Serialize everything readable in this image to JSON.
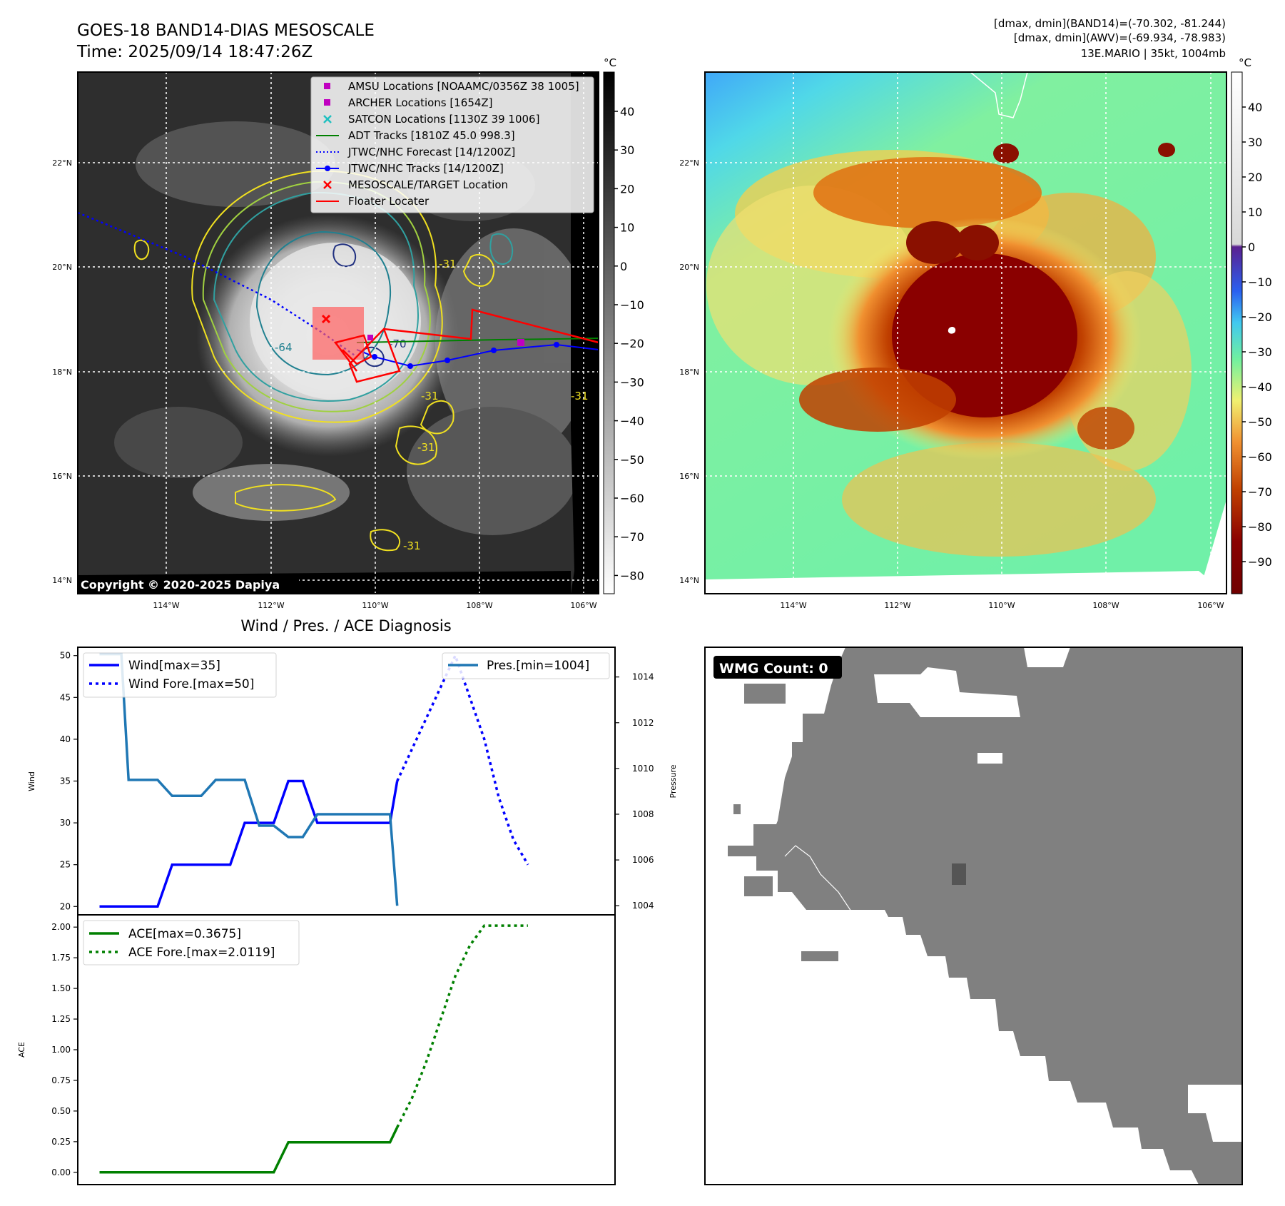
{
  "header": {
    "title_line1": "GOES-18 BAND14-DIAS MESOSCALE",
    "title_line2": "Time: 2025/09/14 18:47:26Z",
    "info_line1": "[dmax, dmin](BAND14)=(-70.302, -81.244)",
    "info_line2": "[dmax, dmin](AWV)=(-69.934, -78.983)",
    "info_line3": "13E.MARIO | 35kt, 1004mb"
  },
  "ir_panel": {
    "unit": "°C",
    "colorbar_ticks": [
      "40",
      "30",
      "20",
      "10",
      "0",
      "−10",
      "−20",
      "−30",
      "−40",
      "−50",
      "−60",
      "−70",
      "−80"
    ],
    "lat_labels": [
      "22°N",
      "20°N",
      "18°N",
      "16°N",
      "14°N"
    ],
    "lon_labels": [
      "114°W",
      "112°W",
      "110°W",
      "108°W",
      "106°W"
    ],
    "copyright": "Copyright © 2020-2025 Dapiya",
    "contour_labels": [
      "-31",
      "-31",
      "-64",
      "-70",
      "-31",
      "-31",
      "-31"
    ],
    "legend": [
      {
        "label": "AMSU Locations [NOAAMC/0356Z 38 1005]",
        "symbol": "square",
        "color": "#c000c0"
      },
      {
        "label": "ARCHER Locations [1654Z]",
        "symbol": "square",
        "color": "#c000c0"
      },
      {
        "label": "SATCON Locations [1130Z 39 1006]",
        "symbol": "x",
        "color": "#20c0c0"
      },
      {
        "label": "ADT Tracks [1810Z 45.0 998.3]",
        "symbol": "line",
        "color": "#008000"
      },
      {
        "label": "JTWC/NHC Forecast [14/1200Z]",
        "symbol": "dotted",
        "color": "#0000ff"
      },
      {
        "label": "JTWC/NHC Tracks [14/1200Z]",
        "symbol": "line-dot",
        "color": "#0000ff"
      },
      {
        "label": "MESOSCALE/TARGET Location",
        "symbol": "x",
        "color": "#ff0000"
      },
      {
        "label": "Floater Locater",
        "symbol": "line",
        "color": "#ff0000"
      }
    ]
  },
  "awv_panel": {
    "unit": "°C",
    "colorbar_ticks": [
      "40",
      "30",
      "20",
      "10",
      "0",
      "−10",
      "−20",
      "−30",
      "−40",
      "−50",
      "−60",
      "−70",
      "−80",
      "−90"
    ],
    "lat_labels": [
      "22°N",
      "20°N",
      "18°N",
      "16°N",
      "14°N"
    ],
    "lon_labels": [
      "114°W",
      "112°W",
      "110°W",
      "108°W",
      "106°W"
    ]
  },
  "wmg_panel": {
    "badge": "WMG Count: 0"
  },
  "colors": {
    "wind": "#0000ff",
    "pressure": "#1f77b4",
    "ace": "#008000",
    "wmg_gray": "#808080"
  },
  "chart_data": [
    {
      "type": "line",
      "title": "Wind / Pres. / ACE Diagnosis",
      "ylabel": "Wind",
      "ylim": [
        19,
        51
      ],
      "y2label": "Pressure",
      "y2lim": [
        1003.6,
        1015.3
      ],
      "yticks": [
        "50",
        "45",
        "40",
        "35",
        "30",
        "25",
        "20"
      ],
      "y2ticks": [
        "1014",
        "1012",
        "1010",
        "1008",
        "1006",
        "1004"
      ],
      "legend_left": [
        "Wind[max=35]",
        "Wind Fore.[max=50]"
      ],
      "legend_right": [
        "Pres.[min=1004]"
      ],
      "x": [
        0,
        1,
        2,
        3,
        4,
        5,
        6,
        7,
        8,
        9,
        10,
        11,
        12,
        13,
        14,
        15,
        16,
        17,
        18,
        19,
        20,
        21,
        22,
        23,
        24
      ],
      "series": [
        {
          "name": "Wind[max=35]",
          "axis": "left",
          "style": "solid",
          "points": [
            [
              0,
              20
            ],
            [
              1,
              20
            ],
            [
              2,
              20
            ],
            [
              3,
              20
            ],
            [
              4,
              20
            ],
            [
              5,
              25
            ],
            [
              6,
              25
            ],
            [
              7,
              25
            ],
            [
              8,
              25
            ],
            [
              9,
              25
            ],
            [
              10,
              30
            ],
            [
              11,
              30
            ],
            [
              12,
              30
            ],
            [
              13,
              35
            ],
            [
              14,
              35
            ],
            [
              15,
              30
            ],
            [
              16,
              30
            ],
            [
              17,
              30
            ],
            [
              18,
              30
            ],
            [
              19,
              30
            ],
            [
              20,
              30
            ],
            [
              20.5,
              35
            ]
          ]
        },
        {
          "name": "Wind Fore.[max=50]",
          "axis": "left",
          "style": "dotted",
          "points": [
            [
              20.5,
              35
            ],
            [
              24.5,
              50
            ],
            [
              25.5,
              45
            ],
            [
              26.5,
              40
            ],
            [
              27.5,
              33
            ],
            [
              28.5,
              28
            ],
            [
              29.5,
              25
            ]
          ]
        },
        {
          "name": "Pres.[min=1004]",
          "axis": "right",
          "style": "solid",
          "points": [
            [
              0,
              1015
            ],
            [
              1,
              1015
            ],
            [
              1.5,
              1015
            ],
            [
              2,
              1009.5
            ],
            [
              3,
              1009.5
            ],
            [
              4,
              1009.5
            ],
            [
              5,
              1008.8
            ],
            [
              6,
              1008.8
            ],
            [
              7,
              1008.8
            ],
            [
              8,
              1009.5
            ],
            [
              9,
              1009.5
            ],
            [
              10,
              1009.5
            ],
            [
              11,
              1007.5
            ],
            [
              12,
              1007.5
            ],
            [
              13,
              1007
            ],
            [
              14,
              1007
            ],
            [
              15,
              1008
            ],
            [
              16,
              1008
            ],
            [
              17,
              1008
            ],
            [
              18,
              1008
            ],
            [
              19,
              1008
            ],
            [
              20,
              1008
            ],
            [
              20.5,
              1004
            ]
          ]
        }
      ]
    },
    {
      "type": "line",
      "ylabel": "ACE",
      "ylim": [
        -0.1,
        2.1
      ],
      "yticks": [
        "2.00",
        "1.75",
        "1.50",
        "1.25",
        "1.00",
        "0.75",
        "0.50",
        "0.25",
        "0.00"
      ],
      "legend_left": [
        "ACE[max=0.3675]",
        "ACE Fore.[max=2.0119]"
      ],
      "series": [
        {
          "name": "ACE[max=0.3675]",
          "style": "solid",
          "points": [
            [
              0,
              0
            ],
            [
              1,
              0
            ],
            [
              2,
              0
            ],
            [
              3,
              0
            ],
            [
              4,
              0
            ],
            [
              5,
              0
            ],
            [
              6,
              0
            ],
            [
              7,
              0
            ],
            [
              8,
              0
            ],
            [
              9,
              0
            ],
            [
              10,
              0
            ],
            [
              11,
              0
            ],
            [
              12,
              0
            ],
            [
              13,
              0.245
            ],
            [
              14,
              0.245
            ],
            [
              15,
              0.245
            ],
            [
              16,
              0.245
            ],
            [
              17,
              0.245
            ],
            [
              18,
              0.245
            ],
            [
              19,
              0.245
            ],
            [
              20,
              0.245
            ],
            [
              20.5,
              0.3675
            ]
          ]
        },
        {
          "name": "ACE Fore.[max=2.0119]",
          "style": "dotted",
          "points": [
            [
              20.5,
              0.3675
            ],
            [
              21.5,
              0.6
            ],
            [
              22.5,
              0.9
            ],
            [
              23.5,
              1.25
            ],
            [
              24.5,
              1.6
            ],
            [
              25.5,
              1.85
            ],
            [
              26.5,
              2.0119
            ],
            [
              27.5,
              2.0119
            ],
            [
              28.5,
              2.0119
            ],
            [
              29.5,
              2.0119
            ]
          ]
        }
      ]
    }
  ]
}
